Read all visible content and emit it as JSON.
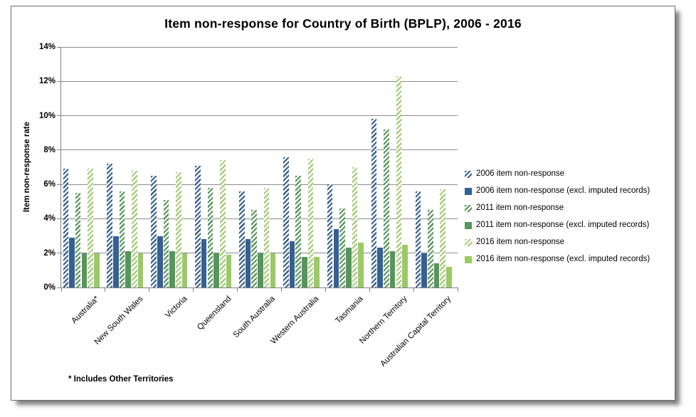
{
  "chart_data": {
    "type": "bar",
    "title": "Item non-response for Country of Birth (BPLP), 2006 - 2016",
    "ylabel": "Item non-response rate",
    "xlabel": "",
    "ylim": [
      0,
      14
    ],
    "ytick_step": 2,
    "ytick_labels": [
      "0%",
      "2%",
      "4%",
      "6%",
      "8%",
      "10%",
      "12%",
      "14%"
    ],
    "grid": true,
    "legend_position": "right",
    "footnote": "* Includes Other Territories",
    "categories": [
      "Australia*",
      "New South Wales",
      "Victoria",
      "Queensland",
      "South Australia",
      "Western Australia",
      "Tasmania",
      "Northern Territory",
      "Australian Capital Territory"
    ],
    "series": [
      {
        "name": "2006 item non-response",
        "pattern": "hatch",
        "color": "#376092",
        "css": "hatch-blue",
        "values": [
          6.9,
          7.2,
          6.5,
          7.1,
          5.6,
          7.6,
          6.0,
          9.8,
          5.6
        ]
      },
      {
        "name": "2006 item non-response (excl. imputed records)",
        "pattern": "solid",
        "color": "#376092",
        "css": "solid-blue",
        "values": [
          2.9,
          3.0,
          3.0,
          2.8,
          2.8,
          2.7,
          3.4,
          2.3,
          2.0
        ]
      },
      {
        "name": "2011 item non-response",
        "pattern": "hatch",
        "color": "#55965A",
        "css": "hatch-green",
        "values": [
          5.5,
          5.6,
          5.1,
          5.8,
          4.5,
          6.5,
          4.6,
          9.2,
          4.5
        ]
      },
      {
        "name": "2011 item non-response (excl. imputed records)",
        "pattern": "solid",
        "color": "#55965A",
        "css": "solid-green",
        "values": [
          2.0,
          2.1,
          2.1,
          2.0,
          2.0,
          1.8,
          2.3,
          2.1,
          1.4
        ]
      },
      {
        "name": "2016 item non-response",
        "pattern": "hatch",
        "color": "#9CC968",
        "css": "hatch-lgreen",
        "values": [
          6.9,
          6.8,
          6.7,
          7.4,
          5.8,
          7.5,
          7.0,
          12.3,
          5.7
        ]
      },
      {
        "name": "2016 item non-response (excl. imputed records)",
        "pattern": "solid",
        "color": "#9CC968",
        "css": "solid-lgreen",
        "values": [
          2.0,
          2.0,
          2.0,
          1.9,
          2.0,
          1.8,
          2.6,
          2.5,
          1.2
        ]
      }
    ]
  },
  "colors": {
    "blue": "#376092",
    "green": "#55965A",
    "light_green": "#9CC968",
    "gridline": "#8c8c8c",
    "axis": "#808080",
    "text": "#000000",
    "panel_border": "#6e6e6e"
  }
}
